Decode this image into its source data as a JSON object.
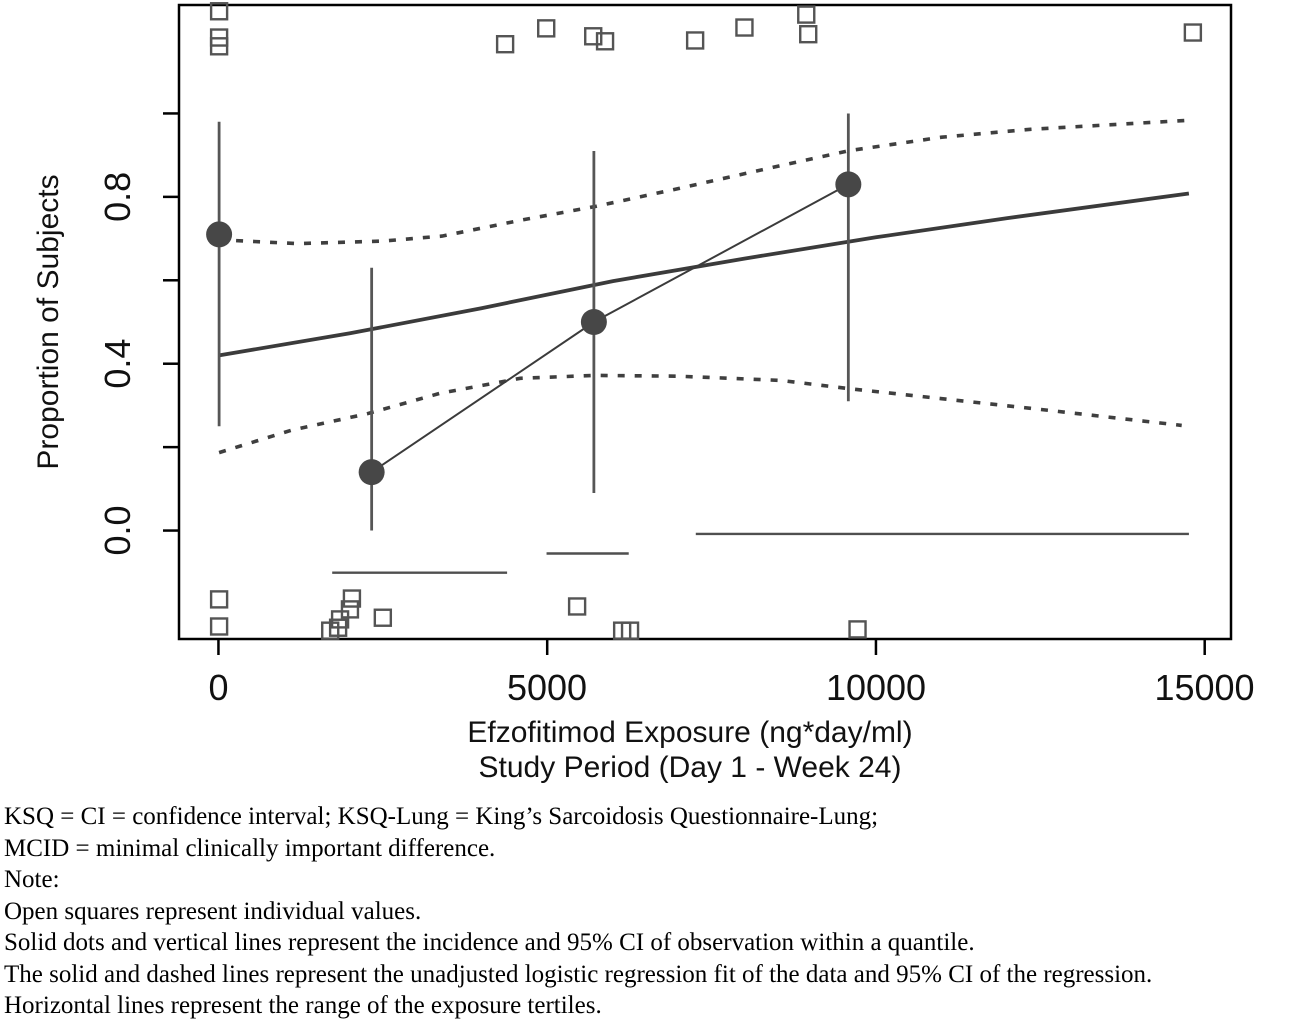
{
  "figure": {
    "ylabel": "Proportion of Subjects",
    "xlabel": "Efzofitimod Exposure (ng*day/ml)",
    "xlabel_line2": "Study Period (Day 1 - Week 24)"
  },
  "colors": {
    "frame": "#000000",
    "regression_line": "#3b3b3b",
    "dashed_ci_line": "#3f3f3f",
    "marker_fill": "#474747",
    "square_stroke": "#545454",
    "ci_bar": "#565656",
    "tertile_line": "#4f4f4f"
  },
  "footnotes": [
    "KSQ = CI = confidence interval; KSQ-Lung = King’s Sarcoidosis Questionnaire-Lung;",
    "MCID = minimal clinically important difference.",
    "Note:",
    "Open squares represent individual values.",
    "Solid dots and vertical lines represent the incidence and 95% CI of observation within a quantile.",
    "The solid and dashed lines represent the unadjusted logistic regression fit of the data and 95% CI of the regression.",
    "Horizontal lines represent the range of the exposure tertiles."
  ],
  "chart_data": {
    "type": "scatter",
    "title": "",
    "xlabel": "Efzofitimod Exposure (ng*day/ml)",
    "xlabel_line2": "Study Period (Day 1 - Week 24)",
    "ylabel": "Proportion of Subjects",
    "xlim": [
      -600,
      15400
    ],
    "ylim": [
      -0.26,
      1.26
    ],
    "grid": false,
    "legend": "none",
    "x_ticks": [
      0,
      5000,
      10000,
      15000
    ],
    "x_tick_labels": [
      "0",
      "5000",
      "10000",
      "15000"
    ],
    "y_ticks": [
      0.0,
      0.2,
      0.4,
      0.6,
      0.8,
      1.0
    ],
    "y_tick_labels": [
      {
        "value": 0.0,
        "label": "0.0"
      },
      {
        "value": 0.4,
        "label": "0.4"
      },
      {
        "value": 0.8,
        "label": "0.8"
      }
    ],
    "series": {
      "regression_fit": {
        "style": "solid",
        "points": [
          [
            10,
            0.42
          ],
          [
            2000,
            0.473
          ],
          [
            4000,
            0.533
          ],
          [
            6000,
            0.598
          ],
          [
            8000,
            0.652
          ],
          [
            10000,
            0.703
          ],
          [
            12000,
            0.749
          ],
          [
            14760,
            0.808
          ]
        ]
      },
      "ci_upper": {
        "style": "dashed",
        "points": [
          [
            10,
            0.697
          ],
          [
            1200,
            0.688
          ],
          [
            2500,
            0.694
          ],
          [
            3400,
            0.706
          ],
          [
            4600,
            0.744
          ],
          [
            5730,
            0.777
          ],
          [
            7000,
            0.82
          ],
          [
            8550,
            0.875
          ],
          [
            9600,
            0.911
          ],
          [
            11000,
            0.943
          ],
          [
            12350,
            0.962
          ],
          [
            14700,
            0.983
          ]
        ]
      },
      "ci_lower": {
        "style": "dashed",
        "points": [
          [
            10,
            0.187
          ],
          [
            1100,
            0.24
          ],
          [
            2260,
            0.28
          ],
          [
            3370,
            0.329
          ],
          [
            4590,
            0.365
          ],
          [
            5730,
            0.372
          ],
          [
            7000,
            0.37
          ],
          [
            8550,
            0.36
          ],
          [
            9600,
            0.34
          ],
          [
            11000,
            0.316
          ],
          [
            12350,
            0.293
          ],
          [
            14650,
            0.252
          ]
        ]
      },
      "quantile_incidence": [
        {
          "x": 10,
          "y": 0.71,
          "ci_low": 0.25,
          "ci_high": 0.98
        },
        {
          "x": 2330,
          "y": 0.14,
          "ci_low": 0.0,
          "ci_high": 0.63
        },
        {
          "x": 5710,
          "y": 0.5,
          "ci_low": 0.09,
          "ci_high": 0.91
        },
        {
          "x": 9580,
          "y": 0.83,
          "ci_low": 0.31,
          "ci_high": 1.0
        }
      ],
      "quantile_connector": [
        [
          2330,
          0.14
        ],
        [
          5710,
          0.5
        ],
        [
          9580,
          0.83
        ]
      ],
      "exposure_tertile_ranges": [
        {
          "x_start": 1730,
          "x_end": 4390,
          "y": -0.101
        },
        {
          "x_start": 4990,
          "x_end": 6240,
          "y": -0.055
        },
        {
          "x_start": 7260,
          "x_end": 14760,
          "y": -0.008
        }
      ],
      "individual_values_top": [
        [
          10,
          1.245
        ],
        [
          10,
          1.182
        ],
        [
          10,
          1.161
        ],
        [
          4360,
          1.166
        ],
        [
          4985,
          1.204
        ],
        [
          5700,
          1.185
        ],
        [
          5880,
          1.173
        ],
        [
          7250,
          1.175
        ],
        [
          8000,
          1.206
        ],
        [
          8940,
          1.237
        ],
        [
          8970,
          1.19
        ],
        [
          14820,
          1.194
        ]
      ],
      "individual_values_bottom": [
        [
          10,
          -0.165
        ],
        [
          10,
          -0.23
        ],
        [
          1700,
          -0.24
        ],
        [
          1820,
          -0.233
        ],
        [
          1850,
          -0.213
        ],
        [
          2000,
          -0.189
        ],
        [
          2030,
          -0.163
        ],
        [
          2500,
          -0.209
        ],
        [
          5455,
          -0.182
        ],
        [
          6140,
          -0.24
        ],
        [
          6260,
          -0.24
        ],
        [
          9720,
          -0.237
        ]
      ]
    }
  }
}
